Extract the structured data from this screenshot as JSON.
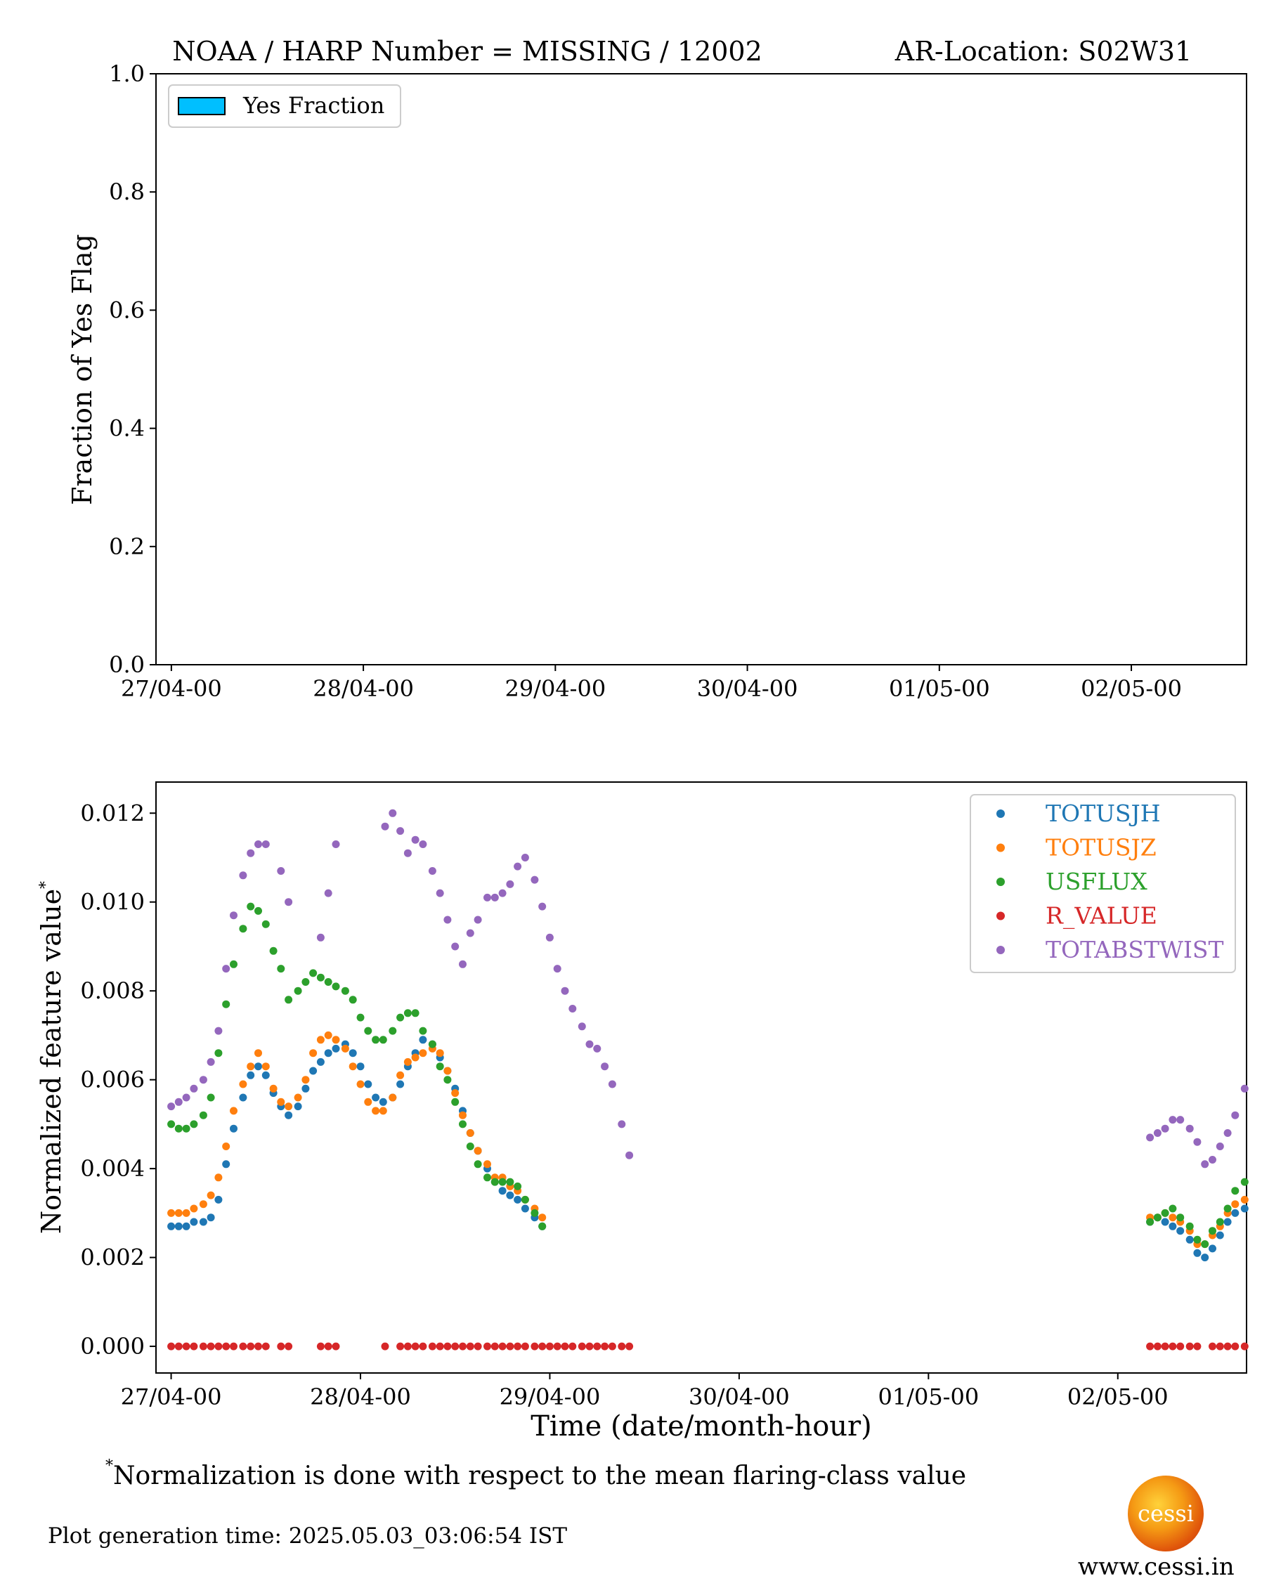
{
  "top_panel": {
    "title_left": "NOAA / HARP Number = MISSING / 12002",
    "title_right": "AR-Location: S02W31",
    "ylabel": "Fraction of Yes Flag",
    "legend_label": "Yes Fraction",
    "legend_color": "#00bfff",
    "y_ticks": [
      "0.0",
      "0.2",
      "0.4",
      "0.6",
      "0.8",
      "1.0"
    ],
    "x_ticks": [
      "27/04-00",
      "28/04-00",
      "29/04-00",
      "30/04-00",
      "01/05-00",
      "02/05-00"
    ]
  },
  "bottom_panel": {
    "ylabel": "Normalized feature value",
    "ylabel_star": "*",
    "xlabel": "Time (date/month-hour)",
    "y_ticks": [
      "0.000",
      "0.002",
      "0.004",
      "0.006",
      "0.008",
      "0.010",
      "0.012"
    ],
    "x_ticks": [
      "27/04-00",
      "28/04-00",
      "29/04-00",
      "30/04-00",
      "01/05-00",
      "02/05-00"
    ]
  },
  "footnote": {
    "star": "*",
    "text": "Normalization is done with respect to the mean flaring-class value"
  },
  "generation_time": "Plot generation time: 2025.05.03_03:06:54 IST",
  "logo_text": "cessi",
  "website": "www.cessi.in",
  "chart_data": [
    {
      "type": "bar",
      "title": "NOAA / HARP Number = MISSING / 12002      AR-Location: S02W31",
      "xlabel": "",
      "ylabel": "Fraction of Yes Flag",
      "ylim": [
        0,
        1
      ],
      "x_unit": "days since 27/04-00",
      "xlim": [
        -0.08,
        5.6
      ],
      "legend": "upper-left",
      "series": [
        {
          "name": "Yes Fraction",
          "values": []
        }
      ]
    },
    {
      "type": "scatter",
      "xlabel": "Time (date/month-hour)",
      "ylabel": "Normalized feature value*",
      "ylim": [
        -0.0006,
        0.0127
      ],
      "xlim": [
        -0.08,
        5.68
      ],
      "legend": "upper-right",
      "series": [
        {
          "name": "TOTUSJH",
          "color": "#1f77b4",
          "x": [
            0.0,
            0.04,
            0.08,
            0.12,
            0.17,
            0.21,
            0.25,
            0.29,
            0.33,
            0.38,
            0.42,
            0.46,
            0.5,
            0.54,
            0.58,
            0.62,
            0.67,
            0.71,
            0.75,
            0.79,
            0.83,
            0.87,
            0.92,
            0.96,
            1.0,
            1.04,
            1.08,
            1.12,
            1.17,
            1.21,
            1.25,
            1.29,
            1.33,
            1.38,
            1.42,
            1.46,
            1.5,
            1.54,
            1.58,
            1.62,
            1.67,
            1.71,
            1.75,
            1.79,
            1.83,
            1.87,
            1.92,
            1.96,
            2.0,
            2.04,
            2.08,
            2.12,
            2.17,
            2.21,
            2.25,
            2.29,
            2.33,
            2.38,
            2.42,
            5.17,
            5.21,
            5.25,
            5.29,
            5.33,
            5.38,
            5.42,
            5.46,
            5.5,
            5.54,
            5.58,
            5.62,
            5.67
          ],
          "values": [
            0.0027,
            0.0027,
            0.0027,
            0.0028,
            0.0028,
            0.0029,
            0.0033,
            0.0041,
            0.0049,
            0.0056,
            0.0061,
            0.0063,
            0.0061,
            0.0057,
            0.0054,
            0.0052,
            0.0054,
            0.0058,
            0.0062,
            0.0064,
            0.0066,
            0.0067,
            0.0068,
            0.0066,
            0.0063,
            0.0059,
            0.0056,
            0.0055,
            0.0056,
            0.0059,
            0.0063,
            0.0066,
            0.0069,
            0.0068,
            0.0065,
            0.0062,
            0.0058,
            0.0053,
            0.0048,
            0.0044,
            0.004,
            0.0037,
            0.0035,
            0.0034,
            0.0033,
            0.0031,
            0.0029,
            0.0027,
            null,
            null,
            null,
            null,
            null,
            null,
            null,
            null,
            null,
            null,
            null,
            0.0028,
            0.0029,
            0.0028,
            0.0027,
            0.0026,
            0.0024,
            0.0021,
            0.002,
            0.0022,
            0.0025,
            0.0028,
            0.003,
            0.0031
          ]
        },
        {
          "name": "TOTUSJZ",
          "color": "#ff7f0e",
          "x": [
            0.0,
            0.04,
            0.08,
            0.12,
            0.17,
            0.21,
            0.25,
            0.29,
            0.33,
            0.38,
            0.42,
            0.46,
            0.5,
            0.54,
            0.58,
            0.62,
            0.67,
            0.71,
            0.75,
            0.79,
            0.83,
            0.87,
            0.92,
            0.96,
            1.0,
            1.04,
            1.08,
            1.12,
            1.17,
            1.21,
            1.25,
            1.29,
            1.33,
            1.38,
            1.42,
            1.46,
            1.5,
            1.54,
            1.58,
            1.62,
            1.67,
            1.71,
            1.75,
            1.79,
            1.83,
            1.87,
            1.92,
            1.96,
            2.0,
            2.04,
            2.08,
            2.12,
            2.17,
            2.21,
            2.25,
            2.29,
            2.33,
            2.38,
            2.42,
            5.17,
            5.21,
            5.25,
            5.29,
            5.33,
            5.38,
            5.42,
            5.46,
            5.5,
            5.54,
            5.58,
            5.62,
            5.67
          ],
          "values": [
            0.003,
            0.003,
            0.003,
            0.0031,
            0.0032,
            0.0034,
            0.0038,
            0.0045,
            0.0053,
            0.0059,
            0.0063,
            0.0066,
            0.0063,
            0.0058,
            0.0055,
            0.0054,
            0.0056,
            0.006,
            0.0066,
            0.0069,
            0.007,
            0.0069,
            0.0067,
            0.0063,
            0.0059,
            0.0055,
            0.0053,
            0.0053,
            0.0056,
            0.0061,
            0.0064,
            0.0065,
            0.0066,
            0.0067,
            0.0066,
            0.0062,
            0.0057,
            0.0052,
            0.0048,
            0.0044,
            0.0041,
            0.0038,
            0.0038,
            0.0036,
            0.0035,
            0.0033,
            0.0031,
            0.0029,
            null,
            null,
            null,
            null,
            null,
            null,
            null,
            null,
            null,
            null,
            null,
            0.0029,
            0.0029,
            0.003,
            0.0029,
            0.0028,
            0.0026,
            0.0023,
            0.0023,
            0.0025,
            0.0027,
            0.003,
            0.0032,
            0.0033
          ]
        },
        {
          "name": "USFLUX",
          "color": "#2ca02c",
          "x": [
            0.0,
            0.04,
            0.08,
            0.12,
            0.17,
            0.21,
            0.25,
            0.29,
            0.33,
            0.38,
            0.42,
            0.46,
            0.5,
            0.54,
            0.58,
            0.62,
            0.67,
            0.71,
            0.75,
            0.79,
            0.83,
            0.87,
            0.92,
            0.96,
            1.0,
            1.04,
            1.08,
            1.12,
            1.17,
            1.21,
            1.25,
            1.29,
            1.33,
            1.38,
            1.42,
            1.46,
            1.5,
            1.54,
            1.58,
            1.62,
            1.67,
            1.71,
            1.75,
            1.79,
            1.83,
            1.87,
            1.92,
            1.96,
            2.0,
            2.04,
            2.08,
            2.12,
            2.17,
            2.21,
            2.25,
            2.29,
            2.33,
            2.38,
            2.42,
            5.17,
            5.21,
            5.25,
            5.29,
            5.33,
            5.38,
            5.42,
            5.46,
            5.5,
            5.54,
            5.58,
            5.62,
            5.67
          ],
          "values": [
            0.005,
            0.0049,
            0.0049,
            0.005,
            0.0052,
            0.0056,
            0.0066,
            0.0077,
            0.0086,
            0.0094,
            0.0099,
            0.0098,
            0.0095,
            0.0089,
            0.0085,
            0.0078,
            0.008,
            0.0082,
            0.0084,
            0.0083,
            0.0082,
            0.0081,
            0.008,
            0.0078,
            0.0074,
            0.0071,
            0.0069,
            0.0069,
            0.0071,
            0.0074,
            0.0075,
            0.0075,
            0.0071,
            0.0068,
            0.0063,
            0.006,
            0.0055,
            0.005,
            0.0045,
            0.0041,
            0.0038,
            0.0037,
            0.0037,
            0.0037,
            0.0036,
            0.0033,
            0.003,
            0.0027,
            null,
            null,
            null,
            null,
            null,
            null,
            null,
            null,
            null,
            null,
            null,
            0.0028,
            0.0029,
            0.003,
            0.0031,
            0.0029,
            0.0027,
            0.0024,
            0.0023,
            0.0026,
            0.0028,
            0.0031,
            0.0035,
            0.0037
          ]
        },
        {
          "name": "R_VALUE",
          "color": "#d62728",
          "x": [
            0.0,
            0.04,
            0.08,
            0.12,
            0.17,
            0.21,
            0.25,
            0.29,
            0.33,
            0.38,
            0.42,
            0.46,
            0.5,
            0.58,
            0.62,
            0.79,
            0.83,
            0.87,
            1.13,
            1.21,
            1.25,
            1.29,
            1.33,
            1.38,
            1.42,
            1.46,
            1.5,
            1.54,
            1.58,
            1.62,
            1.67,
            1.71,
            1.75,
            1.79,
            1.83,
            1.87,
            1.92,
            1.96,
            2.0,
            2.04,
            2.08,
            2.12,
            2.17,
            2.21,
            2.25,
            2.29,
            2.33,
            2.38,
            2.42,
            5.17,
            5.21,
            5.25,
            5.29,
            5.33,
            5.38,
            5.42,
            5.5,
            5.54,
            5.58,
            5.62,
            5.67
          ],
          "values": [
            0,
            0,
            0,
            0,
            0,
            0,
            0,
            0,
            0,
            0,
            0,
            0,
            0,
            0,
            0,
            0,
            0,
            0,
            0,
            0,
            0,
            0,
            0,
            0,
            0,
            0,
            0,
            0,
            0,
            0,
            0,
            0,
            0,
            0,
            0,
            0,
            0,
            0,
            0,
            0,
            0,
            0,
            0,
            0,
            0,
            0,
            0,
            0,
            0,
            0,
            0,
            0,
            0,
            0,
            0,
            0,
            0,
            0,
            0,
            0,
            0
          ]
        },
        {
          "name": "TOTABSTWIST",
          "color": "#9467bd",
          "x": [
            0.0,
            0.04,
            0.08,
            0.12,
            0.17,
            0.21,
            0.25,
            0.29,
            0.33,
            0.38,
            0.42,
            0.46,
            0.5,
            0.58,
            0.62,
            0.79,
            0.83,
            0.87,
            1.13,
            1.17,
            1.21,
            1.25,
            1.29,
            1.33,
            1.38,
            1.42,
            1.46,
            1.5,
            1.54,
            1.58,
            1.62,
            1.67,
            1.71,
            1.75,
            1.79,
            1.83,
            1.87,
            1.92,
            1.96,
            2.0,
            2.04,
            2.08,
            2.12,
            2.17,
            2.21,
            2.25,
            2.29,
            2.33,
            2.38,
            2.42,
            5.17,
            5.21,
            5.25,
            5.29,
            5.33,
            5.38,
            5.42,
            5.46,
            5.5,
            5.54,
            5.58,
            5.62,
            5.67
          ],
          "values": [
            0.0054,
            0.0055,
            0.0056,
            0.0058,
            0.006,
            0.0064,
            0.0071,
            0.0085,
            0.0097,
            0.0106,
            0.0111,
            0.0113,
            0.0113,
            0.0107,
            0.01,
            0.0092,
            0.0102,
            0.0113,
            0.0117,
            0.012,
            0.0116,
            0.0111,
            0.0114,
            0.0113,
            0.0107,
            0.0102,
            0.0096,
            0.009,
            0.0086,
            0.0093,
            0.0096,
            0.0101,
            0.0101,
            0.0102,
            0.0104,
            0.0108,
            0.011,
            0.0105,
            0.0099,
            0.0092,
            0.0085,
            0.008,
            0.0076,
            0.0072,
            0.0068,
            0.0067,
            0.0063,
            0.0059,
            0.005,
            0.0043,
            0.0047,
            0.0048,
            0.0049,
            0.0051,
            0.0051,
            0.0049,
            0.0046,
            0.0041,
            0.0042,
            0.0045,
            0.0048,
            0.0052,
            0.0058
          ]
        }
      ]
    }
  ]
}
